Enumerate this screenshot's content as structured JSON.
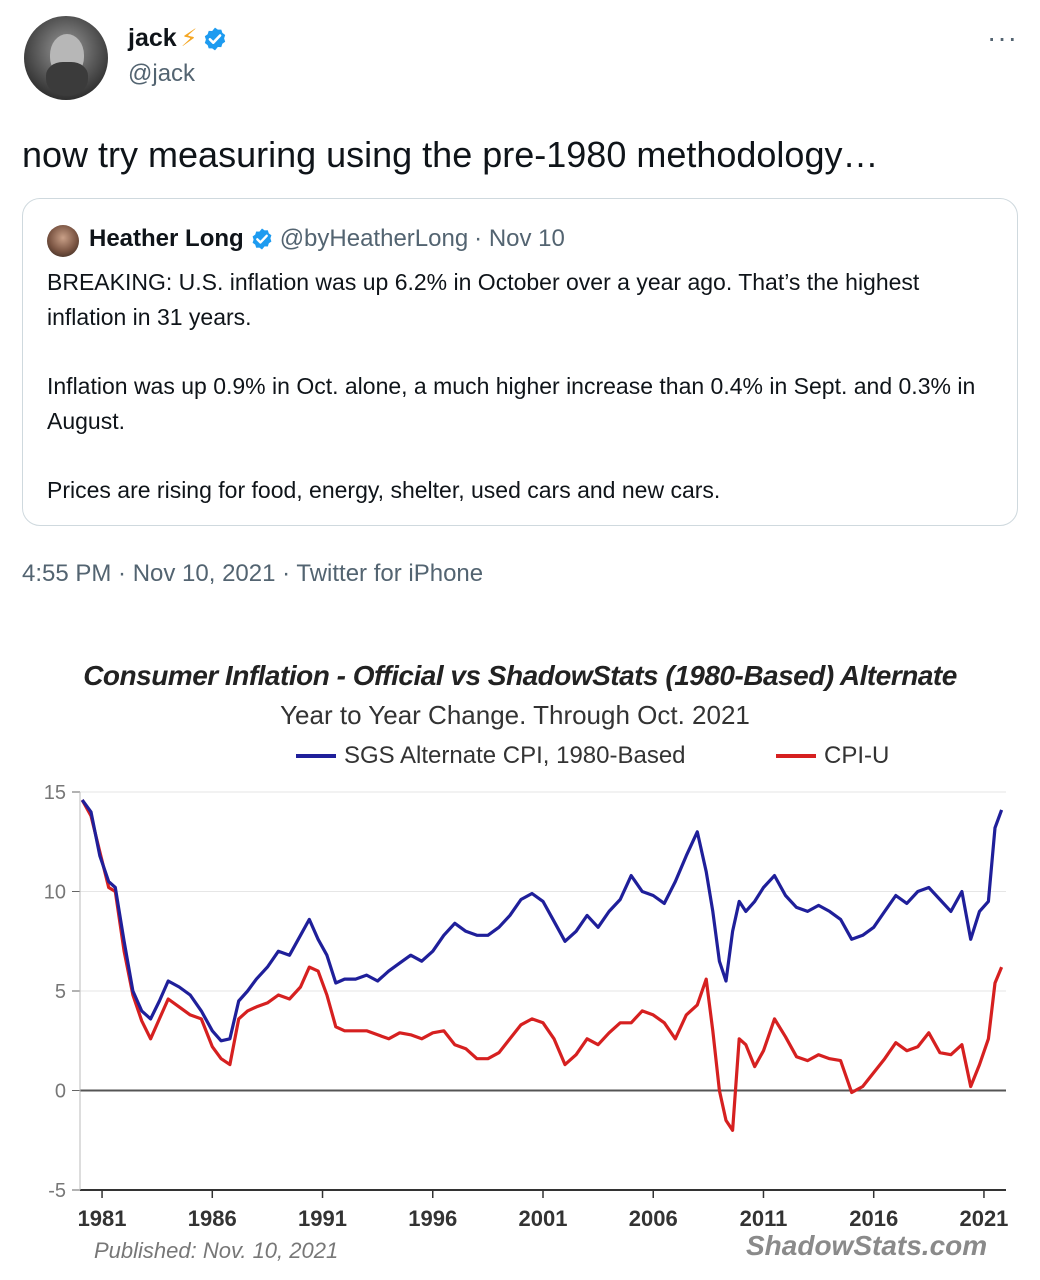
{
  "tweet": {
    "author_name": "jack",
    "author_emoji": "⚡",
    "author_handle": "@jack",
    "more_icon": "more-horizontal-icon",
    "text": "now try measuring using the pre-1980 methodology…",
    "timestamp": "4:55 PM · Nov 10, 2021 · Twitter for iPhone"
  },
  "quote": {
    "author_name": "Heather Long",
    "author_handle": "@byHeatherLong",
    "date": "· Nov 10",
    "paragraphs": [
      "BREAKING: U.S. inflation was up 6.2% in October over a year ago. That’s the highest inflation in 31 years.",
      "Inflation was up 0.9% in Oct. alone, a much higher increase than 0.4% in Sept. and 0.3% in August.",
      "Prices are rising for food, energy, shelter, used cars and new cars."
    ]
  },
  "colors": {
    "verified": "#1d9bf0",
    "sgs": "#1f1f9a",
    "cpiu": "#d62020"
  },
  "chart_data": {
    "type": "line",
    "title": "Consumer Inflation - Official vs ShadowStats (1980-Based) Alternate",
    "subtitle": "Year to Year Change. Through Oct. 2021",
    "published": "Published: Nov. 10, 2021",
    "source": "ShadowStats.com",
    "xlim": [
      1980,
      2022
    ],
    "ylim": [
      -5,
      15
    ],
    "xticks": [
      "1981",
      "1986",
      "1991",
      "1996",
      "2001",
      "2006",
      "2011",
      "2016",
      "2021"
    ],
    "yticks": [
      "15",
      "10",
      "5",
      "0",
      "-5"
    ],
    "grid": true,
    "legend_position": "top",
    "series": [
      {
        "name": "SGS Alternate CPI, 1980-Based",
        "x": [
          1980.1,
          1980.5,
          1980.9,
          1981.3,
          1981.6,
          1982.0,
          1982.4,
          1982.8,
          1983.2,
          1983.6,
          1984.0,
          1984.5,
          1985.0,
          1985.5,
          1986.0,
          1986.4,
          1986.8,
          1987.2,
          1987.6,
          1988.0,
          1988.5,
          1989.0,
          1989.5,
          1990.0,
          1990.4,
          1990.8,
          1991.2,
          1991.6,
          1992.0,
          1992.5,
          1993.0,
          1993.5,
          1994.0,
          1994.5,
          1995.0,
          1995.5,
          1996.0,
          1996.5,
          1997.0,
          1997.5,
          1998.0,
          1998.5,
          1999.0,
          1999.5,
          2000.0,
          2000.5,
          2001.0,
          2001.5,
          2002.0,
          2002.5,
          2003.0,
          2003.5,
          2004.0,
          2004.5,
          2005.0,
          2005.5,
          2006.0,
          2006.5,
          2007.0,
          2007.5,
          2008.0,
          2008.4,
          2008.7,
          2009.0,
          2009.3,
          2009.6,
          2009.9,
          2010.2,
          2010.6,
          2011.0,
          2011.5,
          2012.0,
          2012.5,
          2013.0,
          2013.5,
          2014.0,
          2014.5,
          2015.0,
          2015.5,
          2016.0,
          2016.5,
          2017.0,
          2017.5,
          2018.0,
          2018.5,
          2019.0,
          2019.5,
          2020.0,
          2020.4,
          2020.8,
          2021.2,
          2021.5,
          2021.8
        ],
        "y": [
          14.6,
          14.0,
          11.8,
          10.5,
          10.2,
          7.5,
          5.0,
          4.0,
          3.6,
          4.5,
          5.5,
          5.2,
          4.8,
          4.0,
          3.0,
          2.5,
          2.6,
          4.5,
          5.0,
          5.6,
          6.2,
          7.0,
          6.8,
          7.8,
          8.6,
          7.6,
          6.8,
          5.4,
          5.6,
          5.6,
          5.8,
          5.5,
          6.0,
          6.4,
          6.8,
          6.5,
          7.0,
          7.8,
          8.4,
          8.0,
          7.8,
          7.8,
          8.2,
          8.8,
          9.6,
          9.9,
          9.5,
          8.5,
          7.5,
          8.0,
          8.8,
          8.2,
          9.0,
          9.6,
          10.8,
          10.0,
          9.8,
          9.4,
          10.5,
          11.8,
          13.0,
          11.0,
          9.0,
          6.5,
          5.5,
          8.0,
          9.5,
          9.0,
          9.5,
          10.2,
          10.8,
          9.8,
          9.2,
          9.0,
          9.3,
          9.0,
          8.6,
          7.6,
          7.8,
          8.2,
          9.0,
          9.8,
          9.4,
          10.0,
          10.2,
          9.6,
          9.0,
          10.0,
          7.6,
          9.0,
          9.5,
          13.2,
          14.1
        ]
      },
      {
        "name": "CPI-U",
        "x": [
          1980.1,
          1980.5,
          1980.9,
          1981.3,
          1981.6,
          1982.0,
          1982.4,
          1982.8,
          1983.2,
          1983.6,
          1984.0,
          1984.5,
          1985.0,
          1985.5,
          1986.0,
          1986.4,
          1986.8,
          1987.2,
          1987.6,
          1988.0,
          1988.5,
          1989.0,
          1989.5,
          1990.0,
          1990.4,
          1990.8,
          1991.2,
          1991.6,
          1992.0,
          1992.5,
          1993.0,
          1993.5,
          1994.0,
          1994.5,
          1995.0,
          1995.5,
          1996.0,
          1996.5,
          1997.0,
          1997.5,
          1998.0,
          1998.5,
          1999.0,
          1999.5,
          2000.0,
          2000.5,
          2001.0,
          2001.5,
          2002.0,
          2002.5,
          2003.0,
          2003.5,
          2004.0,
          2004.5,
          2005.0,
          2005.5,
          2006.0,
          2006.5,
          2007.0,
          2007.5,
          2008.0,
          2008.4,
          2008.7,
          2009.0,
          2009.3,
          2009.6,
          2009.9,
          2010.2,
          2010.6,
          2011.0,
          2011.5,
          2012.0,
          2012.5,
          2013.0,
          2013.5,
          2014.0,
          2014.5,
          2015.0,
          2015.5,
          2016.0,
          2016.5,
          2017.0,
          2017.5,
          2018.0,
          2018.5,
          2019.0,
          2019.5,
          2020.0,
          2020.4,
          2020.8,
          2021.2,
          2021.5,
          2021.8
        ],
        "y": [
          14.6,
          13.8,
          12.0,
          10.2,
          10.0,
          7.0,
          4.8,
          3.5,
          2.6,
          3.6,
          4.6,
          4.2,
          3.8,
          3.6,
          2.2,
          1.6,
          1.3,
          3.6,
          4.0,
          4.2,
          4.4,
          4.8,
          4.6,
          5.2,
          6.2,
          6.0,
          4.8,
          3.2,
          3.0,
          3.0,
          3.0,
          2.8,
          2.6,
          2.9,
          2.8,
          2.6,
          2.9,
          3.0,
          2.3,
          2.1,
          1.6,
          1.6,
          1.9,
          2.6,
          3.3,
          3.6,
          3.4,
          2.6,
          1.3,
          1.8,
          2.6,
          2.3,
          2.9,
          3.4,
          3.4,
          4.0,
          3.8,
          3.4,
          2.6,
          3.8,
          4.3,
          5.6,
          3.0,
          0.0,
          -1.5,
          -2.0,
          2.6,
          2.3,
          1.2,
          2.0,
          3.6,
          2.7,
          1.7,
          1.5,
          1.8,
          1.6,
          1.5,
          -0.1,
          0.2,
          0.9,
          1.6,
          2.4,
          2.0,
          2.2,
          2.9,
          1.9,
          1.8,
          2.3,
          0.2,
          1.3,
          2.6,
          5.4,
          6.2
        ]
      }
    ]
  }
}
